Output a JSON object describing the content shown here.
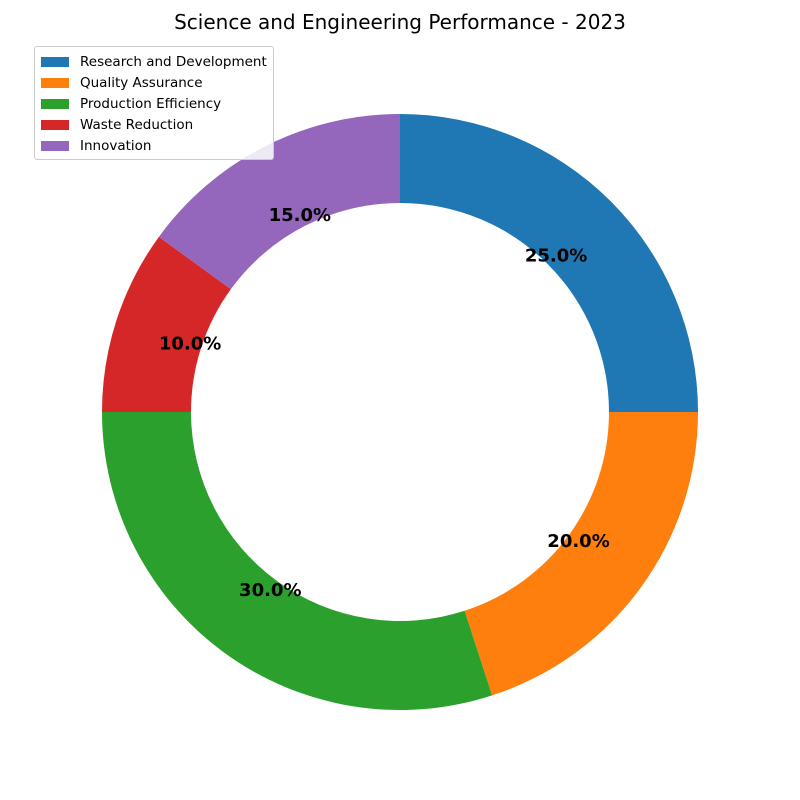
{
  "chart_data": {
    "type": "pie",
    "title": "Science and Engineering Performance - 2023",
    "categories": [
      "Research and Development",
      "Quality Assurance",
      "Production Efficiency",
      "Waste Reduction",
      "Innovation"
    ],
    "values": [
      25.0,
      20.0,
      30.0,
      10.0,
      15.0
    ],
    "value_labels": [
      "25.0%",
      "20.0%",
      "30.0%",
      "10.0%",
      "15.0%"
    ],
    "colors": [
      "#1f77b4",
      "#ff7f0e",
      "#2ca02c",
      "#d62728",
      "#9467bd"
    ],
    "donut": true,
    "start_angle_deg": 90,
    "direction": "clockwise",
    "legend_position": "top-left"
  }
}
